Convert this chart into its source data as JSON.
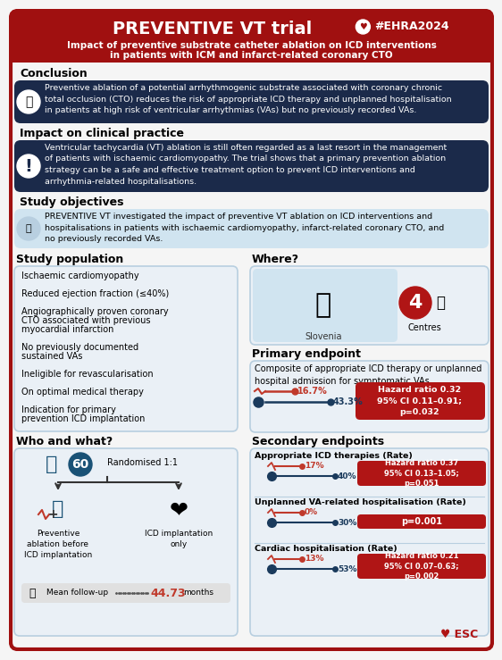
{
  "title": "PREVENTIVE VT trial",
  "hashtag": "#EHRA2024",
  "subtitle1": "Impact of preventive substrate catheter ablation on ICD interventions",
  "subtitle2": "in patients with ICM and infarct-related coronary CTO",
  "header_bg": "#a01010",
  "dark_box_bg": "#1b2a4a",
  "light_box_bg": "#b8cfe0",
  "lighter_box_bg": "#d0e4f0",
  "red_box_bg": "#b01515",
  "border_color": "#a01010",
  "white": "#ffffff",
  "black": "#111111",
  "conclusion_title": "Conclusion",
  "conclusion_text": "Preventive ablation of a potential arrhythmogenic substrate associated with coronary chronic\ntotal occlusion (CTO) reduces the risk of appropriate ICD therapy and unplanned hospitalisation\nin patients at high risk of ventricular arrhythmias (VAs) but no previously recorded VAs.",
  "impact_title": "Impact on clinical practice",
  "impact_text": "Ventricular tachycardia (VT) ablation is still often regarded as a last resort in the management\nof patients with ischaemic cardiomyopathy. The trial shows that a primary prevention ablation\nstrategy can be a safe and effective treatment option to prevent ICD interventions and\narrhythmia-related hospitalisations.",
  "objectives_title": "Study objectives",
  "objectives_text": "PREVENTIVE VT investigated the impact of preventive VT ablation on ICD interventions and\nhospitalisations in patients with ischaemic cardiomyopathy, infarct-related coronary CTO, and\nno previously recorded VAs.",
  "study_pop_title": "Study population",
  "study_pop_items": [
    "Ischaemic cardiomyopathy",
    "Reduced ejection fraction (≤40%)",
    "Angiographically proven coronary\nCTO associated with previous\nmyocardial infarction",
    "No previously documented\nsustained VAs",
    "Ineligible for revascularisation",
    "On optimal medical therapy",
    "Indication for primary\nprevention ICD implantation"
  ],
  "where_title": "Where?",
  "where_country": "Slovenia",
  "where_centres": "4",
  "where_centres_label": "Centres",
  "primary_ep_title": "Primary endpoint",
  "primary_ep_desc": "Composite of appropriate ICD therapy or unplanned\nhospital admission for symptomatic VAs",
  "primary_ep_ablation_pct": "16.7%",
  "primary_ep_control_pct": "43.3%",
  "primary_ep_hr": "Hazard ratio 0.32\n95% CI 0.11–0.91;\np=0.032",
  "who_title": "Who and what?",
  "who_n": "60",
  "who_randomised": "Randomised 1:1",
  "who_left_label": "Preventive\nablation before\nICD implantation",
  "who_right_label": "ICD implantation\nonly",
  "who_followup_label": "Mean follow-up",
  "who_followup_val": "44.73",
  "who_followup_unit": "months",
  "secondary_title": "Secondary endpoints",
  "sec1_title": "Appropriate ICD therapies (Rate)",
  "sec1_ablation_pct": "17%",
  "sec1_control_pct": "40%",
  "sec1_hr": "Hazard ratio 0.37\n95% CI 0.13–1.05;\np=0.051",
  "sec2_title": "Unplanned VA-related hospitalisation (Rate)",
  "sec2_ablation_pct": "0%",
  "sec2_control_pct": "30%",
  "sec2_p": "p=0.001",
  "sec3_title": "Cardiac hospitalisation (Rate)",
  "sec3_ablation_pct": "13%",
  "sec3_control_pct": "53%",
  "sec3_hr": "Hazard ratio 0.21\n95% CI 0.07–0.63;\np=0.002",
  "esc_logo_text": "♥ ESC",
  "line_red": "#c0392b",
  "line_blue": "#1a3a5c"
}
